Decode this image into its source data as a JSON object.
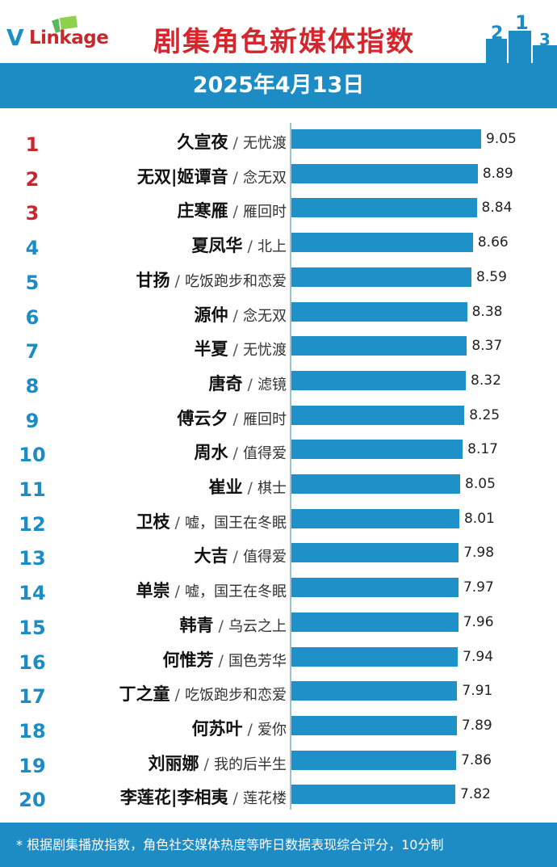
{
  "header": {
    "logo_text_v": "V",
    "logo_text_rest": "Linkage",
    "title": "剧集角色新媒体指数",
    "date": "2025年4月13日"
  },
  "footer": {
    "note": "* 根据剧集播放指数，角色社交媒体热度等昨日数据表现综合评分，10分制"
  },
  "colors": {
    "bar": "#1e91c8",
    "band": "#1d8bc4",
    "title": "#d6262d",
    "top_rank": "#c8272e",
    "rank": "#1d8bc4"
  },
  "chart_data": {
    "type": "bar",
    "orientation": "horizontal",
    "items": [
      {
        "rank": "1",
        "name": "久宣夜",
        "drama": "无忧渡",
        "value": 9.05,
        "value_label": "9.05"
      },
      {
        "rank": "2",
        "name": "无双|姬谭音",
        "drama": "念无双",
        "value": 8.89,
        "value_label": "8.89"
      },
      {
        "rank": "3",
        "name": "庄寒雁",
        "drama": "雁回时",
        "value": 8.84,
        "value_label": "8.84"
      },
      {
        "rank": "4",
        "name": "夏凤华",
        "drama": "北上",
        "value": 8.66,
        "value_label": "8.66"
      },
      {
        "rank": "5",
        "name": "甘扬",
        "drama": "吃饭跑步和恋爱",
        "value": 8.59,
        "value_label": "8.59"
      },
      {
        "rank": "6",
        "name": "源仲",
        "drama": "念无双",
        "value": 8.38,
        "value_label": "8.38"
      },
      {
        "rank": "7",
        "name": "半夏",
        "drama": "无忧渡",
        "value": 8.37,
        "value_label": "8.37"
      },
      {
        "rank": "8",
        "name": "唐奇",
        "drama": "滤镜",
        "value": 8.32,
        "value_label": "8.32"
      },
      {
        "rank": "9",
        "name": "傅云夕",
        "drama": "雁回时",
        "value": 8.25,
        "value_label": "8.25"
      },
      {
        "rank": "10",
        "name": "周水",
        "drama": "值得爱",
        "value": 8.17,
        "value_label": "8.17"
      },
      {
        "rank": "11",
        "name": "崔业",
        "drama": "棋士",
        "value": 8.05,
        "value_label": "8.05"
      },
      {
        "rank": "12",
        "name": "卫枝",
        "drama": "嘘，国王在冬眠",
        "value": 8.01,
        "value_label": "8.01"
      },
      {
        "rank": "13",
        "name": "大吉",
        "drama": "值得爱",
        "value": 7.98,
        "value_label": "7.98"
      },
      {
        "rank": "14",
        "name": "单崇",
        "drama": "嘘，国王在冬眠",
        "value": 7.97,
        "value_label": "7.97"
      },
      {
        "rank": "15",
        "name": "韩青",
        "drama": "乌云之上",
        "value": 7.96,
        "value_label": "7.96"
      },
      {
        "rank": "16",
        "name": "何惟芳",
        "drama": "国色芳华",
        "value": 7.94,
        "value_label": "7.94"
      },
      {
        "rank": "17",
        "name": "丁之童",
        "drama": "吃饭跑步和恋爱",
        "value": 7.91,
        "value_label": "7.91"
      },
      {
        "rank": "18",
        "name": "何苏叶",
        "drama": "爱你",
        "value": 7.89,
        "value_label": "7.89"
      },
      {
        "rank": "19",
        "name": "刘丽娜",
        "drama": "我的后半生",
        "value": 7.86,
        "value_label": "7.86"
      },
      {
        "rank": "20",
        "name": "李莲花|李相夷",
        "drama": "莲花楼",
        "value": 7.82,
        "value_label": "7.82"
      }
    ],
    "separator": "/"
  }
}
